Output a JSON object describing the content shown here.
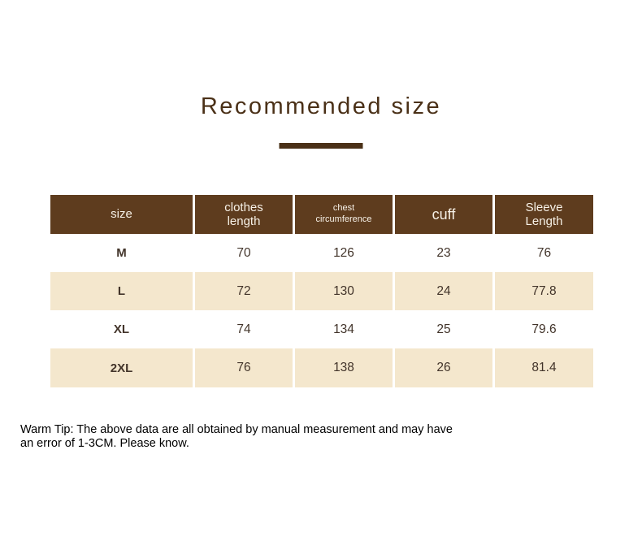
{
  "title": "Recommended size",
  "colors": {
    "header_brown": "#5e3c1e",
    "accent_brown": "#4a3017",
    "row_beige": "#f4e7cd",
    "header_text": "#f7f1e7",
    "cell_text": "#42342a"
  },
  "table": {
    "headers": [
      {
        "line1": "size"
      },
      {
        "line1": "clothes",
        "line2": "length"
      },
      {
        "line1": "chest",
        "line2": "circumference"
      },
      {
        "line1": "cuff"
      },
      {
        "line1": "Sleeve",
        "line2": "Length"
      }
    ],
    "rows": [
      {
        "size": "M",
        "values": [
          "70",
          "126",
          "23",
          "76"
        ]
      },
      {
        "size": "L",
        "values": [
          "72",
          "130",
          "24",
          "77.8"
        ]
      },
      {
        "size": "XL",
        "values": [
          "74",
          "134",
          "25",
          "79.6"
        ]
      },
      {
        "size": "2XL",
        "values": [
          "76",
          "138",
          "26",
          "81.4"
        ]
      }
    ]
  },
  "warm_tip": "Warm Tip: The above data are all obtained by manual measurement and may have an error of 1-3CM. Please know."
}
